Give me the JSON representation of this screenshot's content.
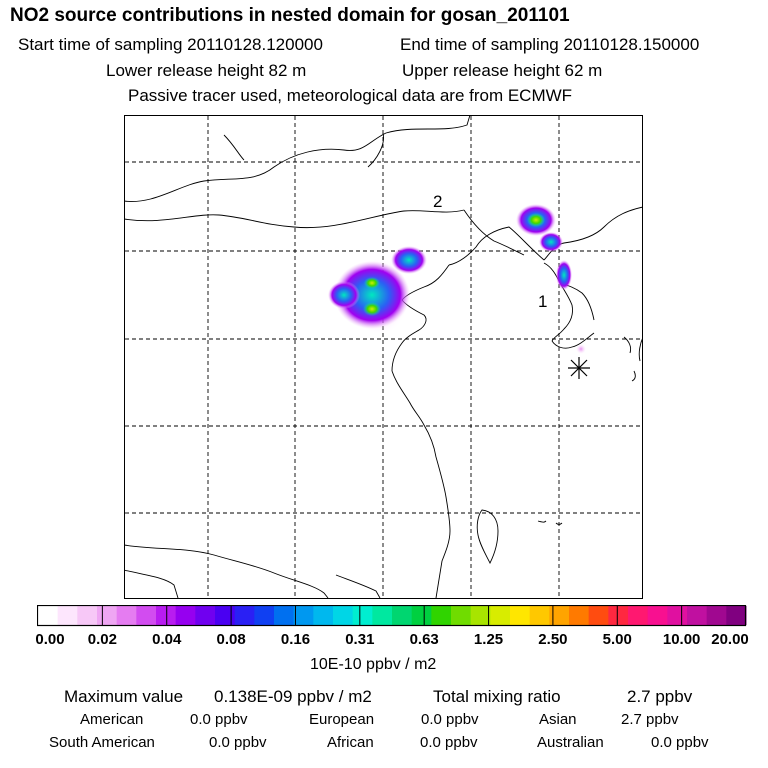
{
  "header": {
    "title": "NO2 source contributions in nested domain for gosan_201101",
    "start_time": "Start time of sampling 20110128.120000",
    "end_time": "End time of sampling 20110128.150000",
    "lower_height": "Lower release height   82 m",
    "upper_height": "Upper release height   62 m",
    "tracer_note": "Passive tracer used, meteorological data are from ECMWF"
  },
  "map": {
    "labels": [
      "1",
      "2"
    ],
    "receptor_marker": "asterisk-icon"
  },
  "colorbar": {
    "ticks": [
      "0.00",
      "0.02",
      "0.04",
      "0.08",
      "0.16",
      "0.31",
      "0.63",
      "1.25",
      "2.50",
      "5.00",
      "10.00",
      "20.00"
    ],
    "unit": "10E-10 ppbv / m2",
    "colors": [
      "#ffffff",
      "#fde6fd",
      "#f7c8f7",
      "#efa6f3",
      "#e57cf1",
      "#d24cf0",
      "#b81cf0",
      "#9600f0",
      "#7000f0",
      "#4a00f2",
      "#2a20f4",
      "#1040f2",
      "#0070f0",
      "#0098f0",
      "#00b8ee",
      "#00d6e6",
      "#00eed0",
      "#00e8a0",
      "#00d670",
      "#00d040",
      "#30d400",
      "#70dc00",
      "#a8e400",
      "#d8ec00",
      "#ffe600",
      "#ffc800",
      "#ffa400",
      "#ff7a00",
      "#ff4c10",
      "#ff2840",
      "#ff1870",
      "#f81090",
      "#e010a0",
      "#c010a0",
      "#a00890",
      "#800080"
    ]
  },
  "summary": {
    "max_label": "Maximum value",
    "max_value": "0.138E-09 ppbv / m2",
    "total_label": "Total mixing ratio",
    "total_value": "2.7 ppbv",
    "regions": [
      {
        "name": "American",
        "value": "0.0 ppbv"
      },
      {
        "name": "European",
        "value": "0.0 ppbv"
      },
      {
        "name": "Asian",
        "value": "2.7 ppbv"
      },
      {
        "name": "South American",
        "value": "0.0 ppbv"
      },
      {
        "name": "African",
        "value": "0.0 ppbv"
      },
      {
        "name": "Australian",
        "value": "0.0 ppbv"
      }
    ]
  }
}
